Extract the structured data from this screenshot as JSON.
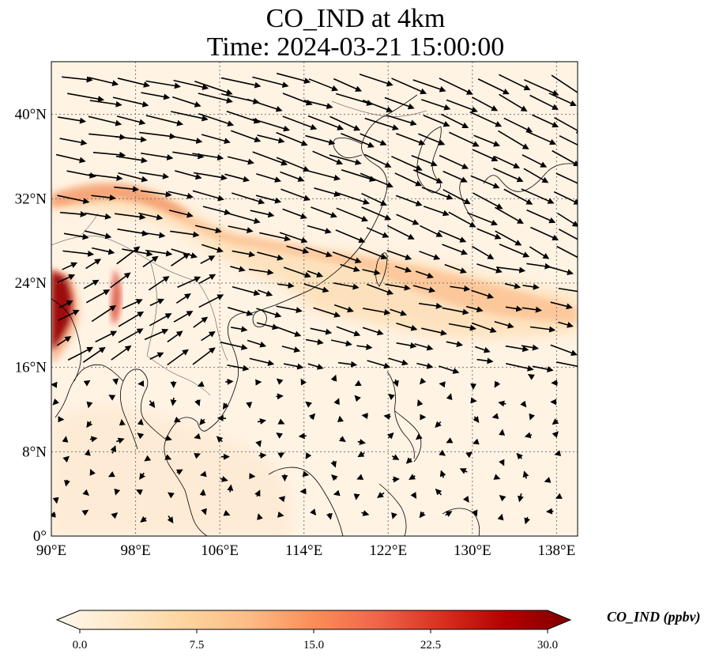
{
  "title": {
    "line1": "CO_IND at 4km",
    "line2": "Time: 2024-03-21 15:00:00"
  },
  "map": {
    "projection": "PlateCarree",
    "lon_range": [
      90,
      140
    ],
    "lat_range": [
      0,
      45
    ],
    "gridlines": "dotted",
    "xticks": [
      "90°E",
      "98°E",
      "106°E",
      "114°E",
      "122°E",
      "130°E",
      "138°E"
    ],
    "yticks": [
      "0°",
      "8°N",
      "16°N",
      "24°N",
      "32°N",
      "40°N"
    ],
    "xtick_values": [
      90,
      98,
      106,
      114,
      122,
      130,
      138
    ],
    "ytick_values": [
      0,
      8,
      16,
      24,
      32,
      40
    ],
    "wind_vectors": "black arrows, strong westerlies north of 16°N, weak winds in the south"
  },
  "colorbar": {
    "label": "CO_IND (ppbv)",
    "ticks": [
      "0.0",
      "7.5",
      "15.0",
      "22.5",
      "30.0"
    ],
    "tick_values": [
      0,
      7.5,
      15,
      22.5,
      30
    ],
    "range": [
      0,
      30
    ],
    "extend": "both",
    "colormap": "OrRd",
    "colors": [
      "#fff7ec",
      "#fee8c8",
      "#fdd49e",
      "#fdbb84",
      "#fc8d59",
      "#ef6548",
      "#d7301f",
      "#b30000",
      "#7f0000"
    ]
  }
}
